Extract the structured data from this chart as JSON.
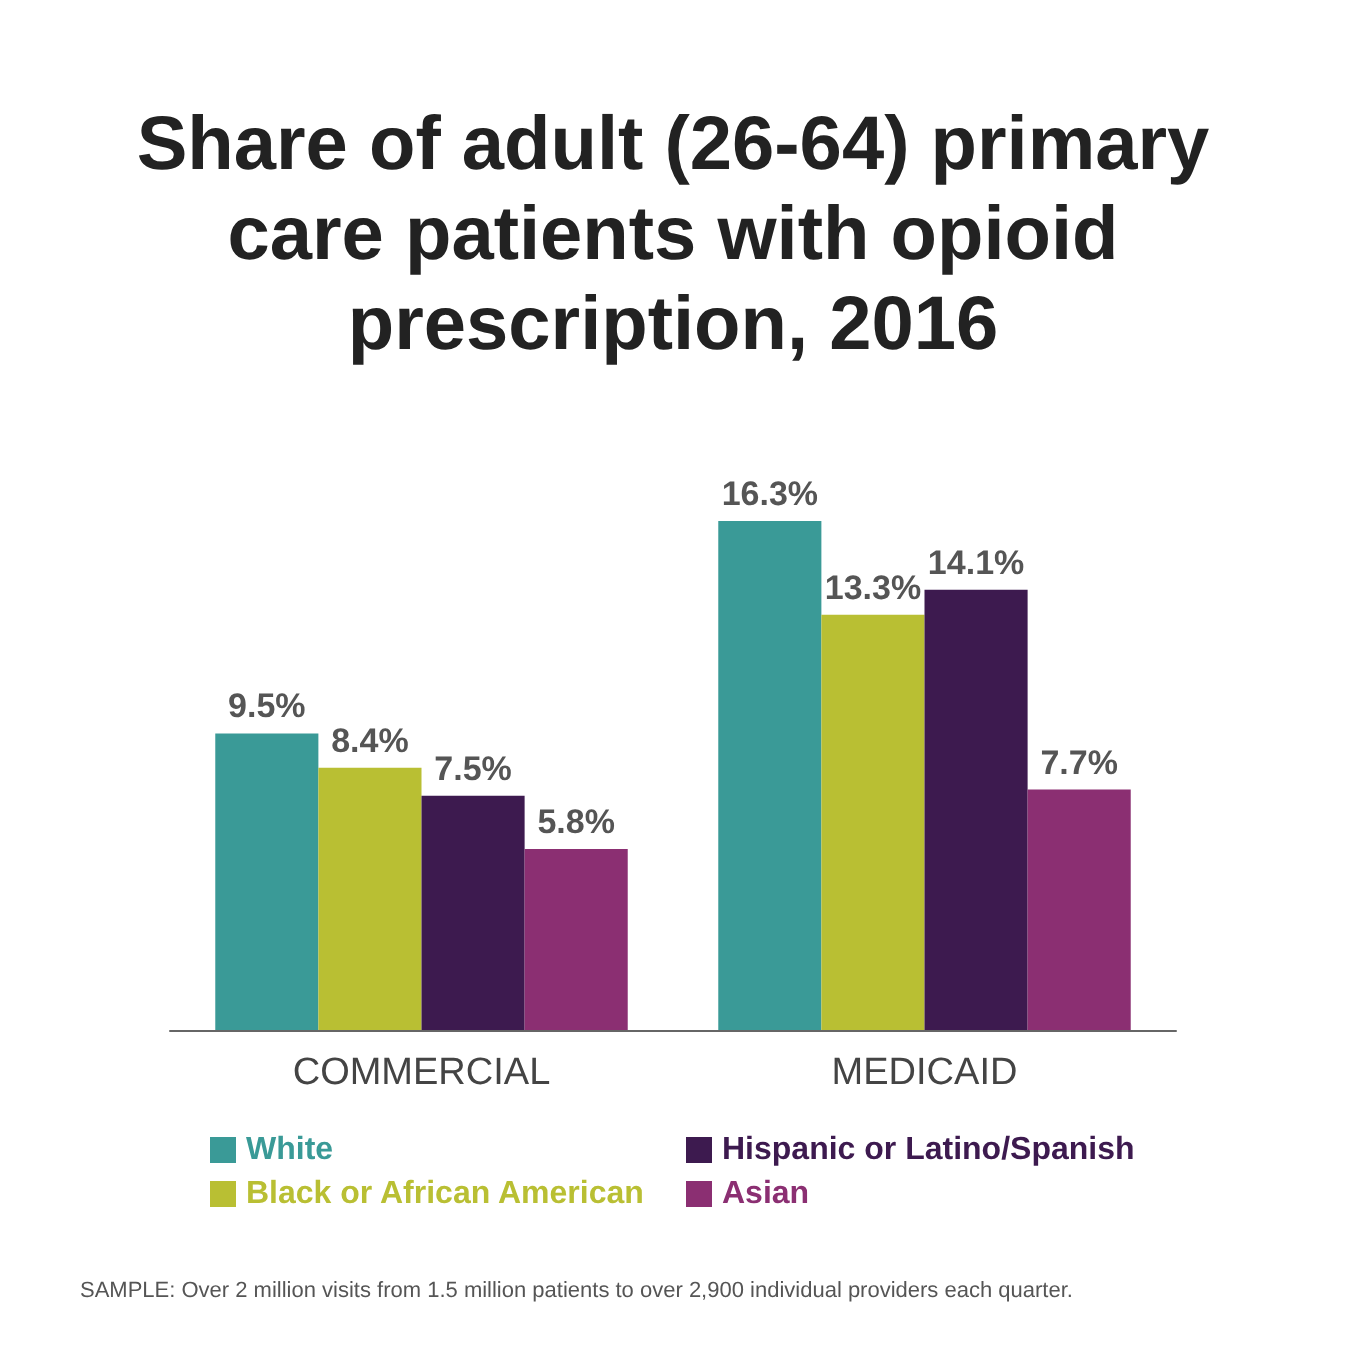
{
  "chart_data": {
    "type": "bar",
    "title": "Share of adult (26-64) primary care patients with opioid prescription, 2016",
    "categories": [
      "COMMERCIAL",
      "MEDICAID"
    ],
    "series": [
      {
        "name": "White",
        "color": "#3a9a97",
        "values": [
          9.5,
          16.3
        ],
        "value_labels": [
          "9.5%",
          "16.3%"
        ]
      },
      {
        "name": "Black or African American",
        "color": "#b9bf33",
        "values": [
          8.4,
          13.3
        ],
        "value_labels": [
          "8.4%",
          "13.3%"
        ]
      },
      {
        "name": "Hispanic or Latino/Spanish",
        "color": "#3d1a4f",
        "values": [
          7.5,
          14.1
        ],
        "value_labels": [
          "7.5%",
          "14.1%"
        ]
      },
      {
        "name": "Asian",
        "color": "#8b2f72",
        "values": [
          5.8,
          7.7
        ],
        "value_labels": [
          "5.8%",
          "7.7%"
        ]
      }
    ],
    "legend": "bottom",
    "annotations": [
      "SAMPLE: Over 2 million visits from 1.5 million patients to over 2,900 individual providers each quarter."
    ]
  }
}
